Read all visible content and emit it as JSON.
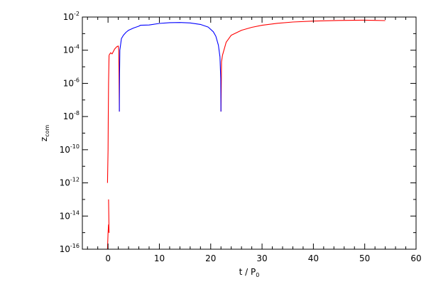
{
  "chart_data": {
    "type": "line",
    "title": "",
    "xlabel": {
      "main": "t / P",
      "sub": "0"
    },
    "ylabel": {
      "main": "z",
      "sub": "com"
    },
    "xlim": [
      -5,
      60
    ],
    "ylim": [
      1e-16,
      0.01
    ],
    "y_scale": "log",
    "grid": false,
    "x_ticks": [
      {
        "value": 0,
        "label": "0"
      },
      {
        "value": 10,
        "label": "10"
      },
      {
        "value": 20,
        "label": "20"
      },
      {
        "value": 30,
        "label": "30"
      },
      {
        "value": 40,
        "label": "40"
      },
      {
        "value": 50,
        "label": "50"
      },
      {
        "value": 60,
        "label": "60"
      }
    ],
    "y_ticks": [
      {
        "value": 1e-16,
        "base": "10",
        "exp": "-16"
      },
      {
        "value": 1e-14,
        "base": "10",
        "exp": "-14"
      },
      {
        "value": 1e-12,
        "base": "10",
        "exp": "-12"
      },
      {
        "value": 1e-10,
        "base": "10",
        "exp": "-10"
      },
      {
        "value": 1e-08,
        "base": "10",
        "exp": "-8"
      },
      {
        "value": 1e-06,
        "base": "10",
        "exp": "-6"
      },
      {
        "value": 0.0001,
        "base": "10",
        "exp": "-4"
      },
      {
        "value": 0.01,
        "base": "10",
        "exp": "-2"
      }
    ],
    "series": [
      {
        "color": "#ff0000",
        "segments": [
          [
            [
              -0.1,
              1e-16
            ],
            [
              0,
              1e-15
            ],
            [
              0.1,
              3e-15
            ],
            [
              0.2,
              1e-15
            ],
            [
              0.1,
              1e-13
            ]
          ],
          [
            [
              -0.1,
              1e-12
            ],
            [
              0,
              1e-10
            ],
            [
              0.05,
              1e-08
            ],
            [
              0.1,
              1e-06
            ],
            [
              0.2,
              5e-05
            ]
          ],
          [
            [
              0.2,
              5e-05
            ],
            [
              0.5,
              7e-05
            ],
            [
              0.8,
              6e-05
            ],
            [
              1.0,
              8e-05
            ],
            [
              1.3,
              0.00012
            ],
            [
              1.7,
              0.00016
            ],
            [
              2.0,
              0.00018
            ],
            [
              2.1,
              0.0001
            ],
            [
              2.15,
              2e-06
            ],
            [
              2.2,
              2e-08
            ]
          ],
          [
            [
              22.0,
              2e-08
            ],
            [
              22.05,
              5e-07
            ],
            [
              22.1,
              2e-05
            ],
            [
              22.3,
              5e-05
            ],
            [
              23,
              0.0003
            ],
            [
              24,
              0.0008
            ],
            [
              26,
              0.0016
            ],
            [
              28,
              0.0024
            ],
            [
              30,
              0.0032
            ],
            [
              33,
              0.0042
            ],
            [
              36,
              0.005
            ],
            [
              40,
              0.0057
            ],
            [
              45,
              0.0062
            ],
            [
              50,
              0.0065
            ],
            [
              52,
              0.0063
            ],
            [
              54,
              0.0061
            ]
          ]
        ]
      },
      {
        "color": "#0000ff",
        "segments": [
          [
            [
              2.2,
              2e-08
            ],
            [
              2.25,
              4e-06
            ],
            [
              2.3,
              0.0001
            ],
            [
              2.6,
              0.0005
            ],
            [
              3.0,
              0.0008
            ],
            [
              3.5,
              0.0012
            ],
            [
              4.0,
              0.0016
            ],
            [
              5.0,
              0.0022
            ],
            [
              6.0,
              0.0028
            ],
            [
              6.3,
              0.0032
            ],
            [
              8,
              0.0033
            ],
            [
              10,
              0.0041
            ],
            [
              12,
              0.0046
            ],
            [
              14,
              0.0047
            ],
            [
              16,
              0.0044
            ],
            [
              18,
              0.0036
            ],
            [
              19.5,
              0.0025
            ],
            [
              20.5,
              0.0013
            ],
            [
              21.0,
              0.0007
            ],
            [
              21.5,
              0.0002
            ],
            [
              21.8,
              4e-05
            ],
            [
              21.95,
              2e-06
            ],
            [
              22.0,
              2e-08
            ]
          ]
        ]
      }
    ]
  }
}
